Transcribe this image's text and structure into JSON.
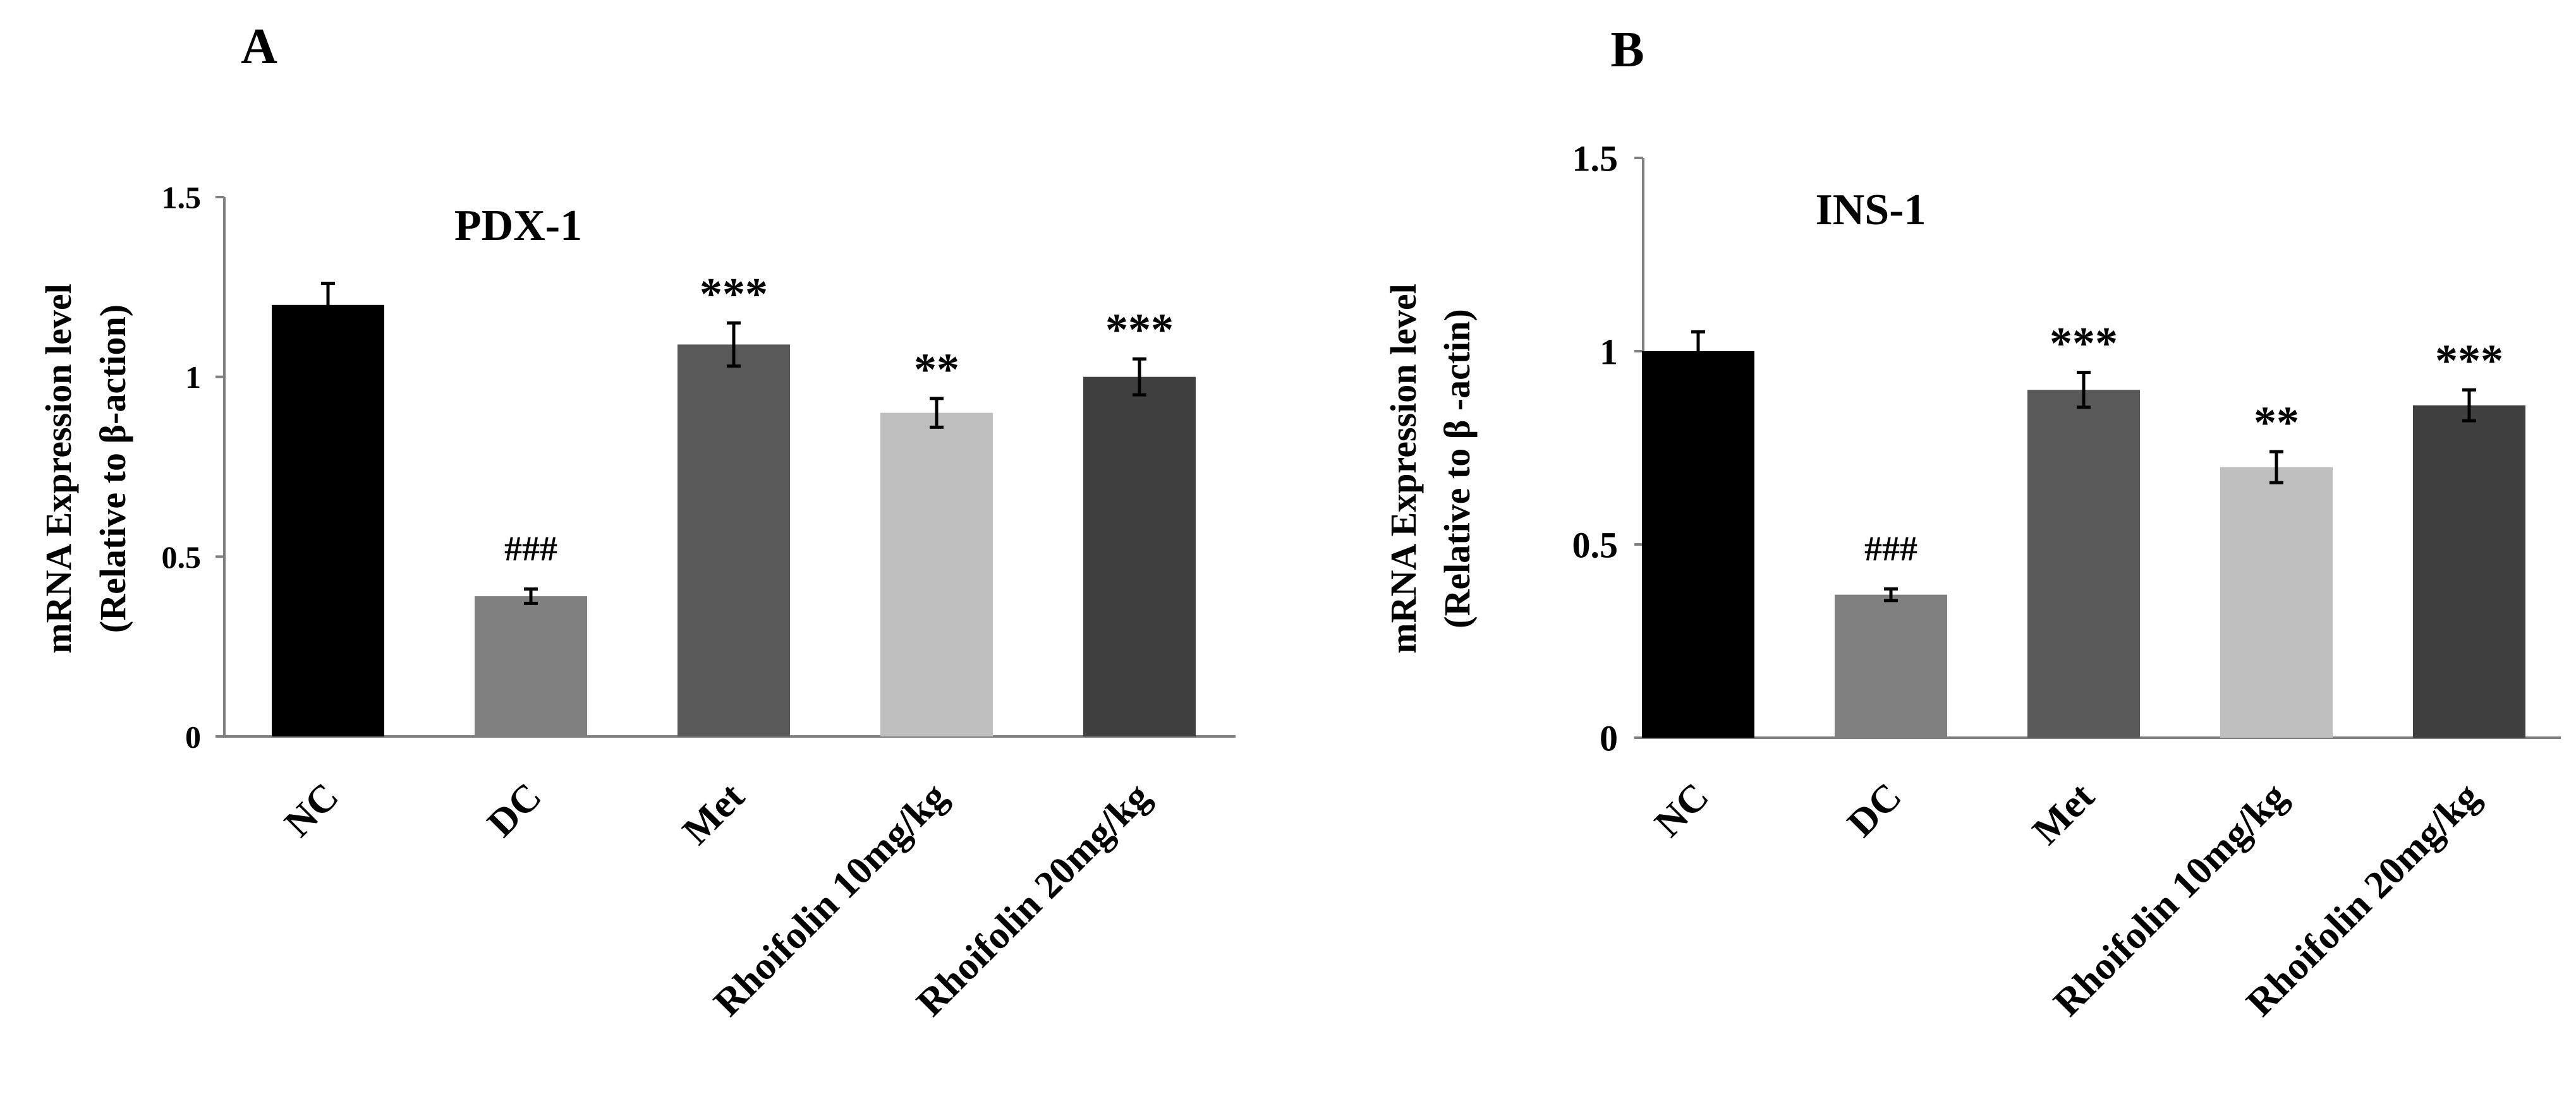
{
  "chart_data": [
    {
      "panel_label": "A",
      "type": "bar",
      "title": "PDX-1",
      "ylabel_line1": "mRNA Expression level",
      "ylabel_line2": "(Relative to β-action)",
      "xlabel": "",
      "ylim": [
        0,
        1.5
      ],
      "yticks": [
        "0",
        "0.5",
        "1",
        "1.5"
      ],
      "ytick_values": [
        0,
        0.5,
        1,
        1.5
      ],
      "categories": [
        "NC",
        "DC",
        "Met",
        "Rhoifolin 10mg/kg",
        "Rhoifolin 20mg/kg"
      ],
      "values": [
        1.2,
        0.39,
        1.09,
        0.9,
        1.0
      ],
      "errors": [
        0.06,
        0.02,
        0.06,
        0.04,
        0.05
      ],
      "annotations": [
        "",
        "###",
        "***",
        "**",
        "***"
      ],
      "colors": [
        "#000000",
        "#808080",
        "#595959",
        "#bfbfbf",
        "#404040"
      ]
    },
    {
      "panel_label": "B",
      "type": "bar",
      "title": "INS-1",
      "ylabel_line1": "mRNA Expression level",
      "ylabel_line2": "(Relative to β -actin)",
      "xlabel": "",
      "ylim": [
        0,
        1.5
      ],
      "yticks": [
        "0",
        "0.5",
        "1",
        "1.5"
      ],
      "ytick_values": [
        0,
        0.5,
        1,
        1.5
      ],
      "categories": [
        "NC",
        "DC",
        "Met",
        "Rhoifolin 10mg/kg",
        "Rhoifolin 20mg/kg"
      ],
      "values": [
        1.0,
        0.37,
        0.9,
        0.7,
        0.86
      ],
      "errors": [
        0.05,
        0.015,
        0.045,
        0.04,
        0.04
      ],
      "annotations": [
        "",
        "###",
        "***",
        "**",
        "***"
      ],
      "colors": [
        "#000000",
        "#808080",
        "#595959",
        "#bfbfbf",
        "#404040"
      ]
    }
  ]
}
